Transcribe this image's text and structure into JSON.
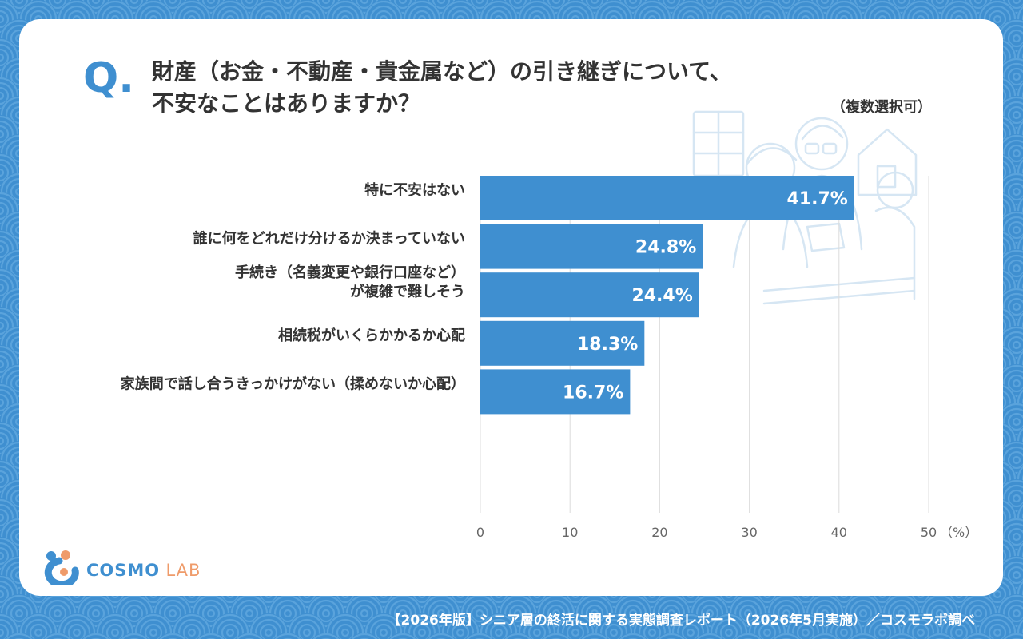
{
  "question": {
    "mark": "Q.",
    "line1": "財産（お金・不動産・貴金属など）の引き継ぎについて、",
    "line2": "不安なことはありますか？",
    "note": "（複数選択可）"
  },
  "chart_data": {
    "type": "bar",
    "orientation": "horizontal",
    "categories": [
      [
        "特に不安はない"
      ],
      [
        "誰に何をどれだけ分けるか決まっていない"
      ],
      [
        "手続き（名義変更や銀行口座など）",
        "が複雑で難しそう"
      ],
      [
        "相続税がいくらかかるか心配"
      ],
      [
        "家族間で話し合うきっかけがない（揉めないか心配）"
      ]
    ],
    "values": [
      41.7,
      24.8,
      24.4,
      18.3,
      16.7
    ],
    "value_labels": [
      "41.7%",
      "24.8%",
      "24.4%",
      "18.3%",
      "16.7%"
    ],
    "x_ticks": [
      "0",
      "10",
      "20",
      "30",
      "40",
      "50"
    ],
    "x_unit": "（%）",
    "xlim": [
      0,
      50
    ],
    "grid": "vertical",
    "bar_color": "#3f8fd0"
  },
  "brand": {
    "name_part1": "COSMO",
    "name_part2": "LAB",
    "primary_color": "#3f8fd0",
    "accent_color": "#ef9b6a"
  },
  "footer": {
    "text": "【2026年版】シニア層の終活に関する実態調査レポート（2026年5月実施）／コスモラボ調べ"
  }
}
